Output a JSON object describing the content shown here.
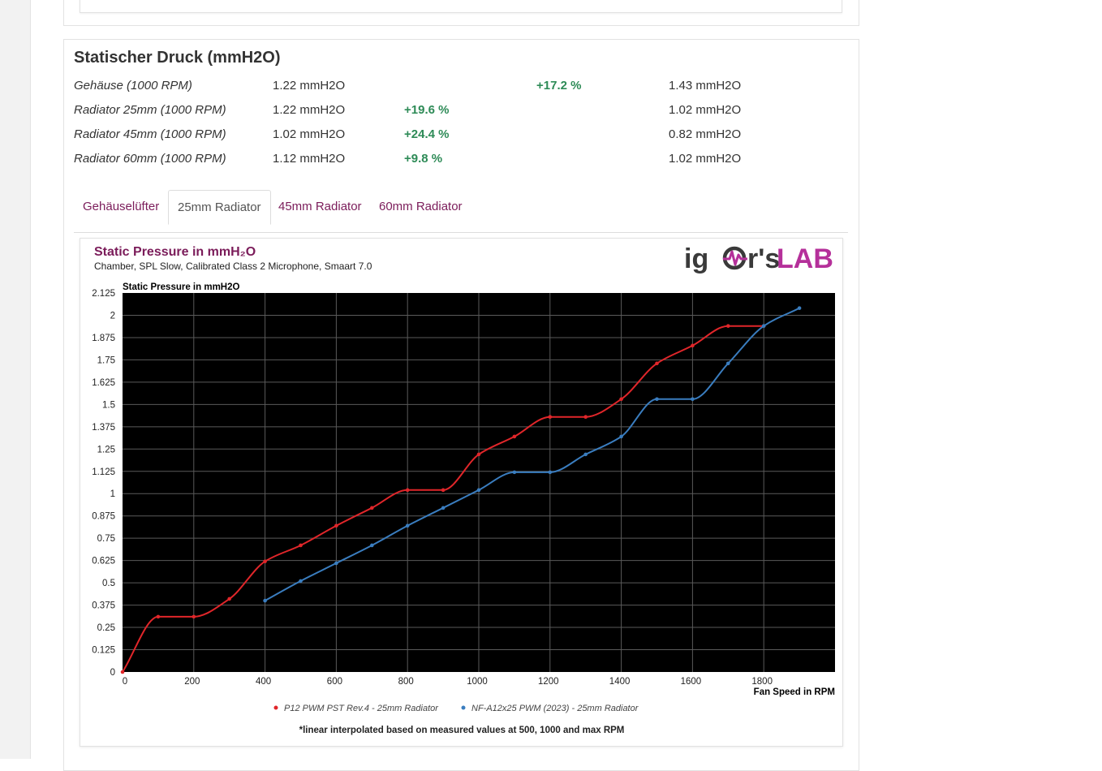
{
  "section": {
    "title": "Statischer Druck (mmH2O)",
    "rows": [
      {
        "label": "Gehäuse (1000 RPM)",
        "value_a": "1.22 mmH2O",
        "delta_a": "",
        "delta_b": "+17.2 %",
        "value_b": "1.43 mmH2O"
      },
      {
        "label": "Radiator 25mm (1000 RPM)",
        "value_a": "1.22 mmH2O",
        "delta_a": "+19.6 %",
        "delta_b": "",
        "value_b": "1.02 mmH2O"
      },
      {
        "label": "Radiator 45mm (1000 RPM)",
        "value_a": "1.02 mmH2O",
        "delta_a": "+24.4 %",
        "delta_b": "",
        "value_b": "0.82 mmH2O"
      },
      {
        "label": "Radiator 60mm (1000 RPM)",
        "value_a": "1.12 mmH2O",
        "delta_a": "+9.8 %",
        "delta_b": "",
        "value_b": "1.02 mmH2O"
      }
    ]
  },
  "tabs": [
    {
      "label": "Gehäuselüfter",
      "active": false
    },
    {
      "label": "25mm Radiator",
      "active": true
    },
    {
      "label": "45mm Radiator",
      "active": false
    },
    {
      "label": "60mm Radiator",
      "active": false
    }
  ],
  "logo": {
    "left": "ig",
    "mid": "r's",
    "right": "LAB"
  },
  "colors": {
    "accent": "#7b1c5a",
    "positive": "#2e8b57",
    "series_red": "#e0262a",
    "series_blue": "#3a7dbf",
    "plot_bg": "#000000",
    "grid": "#5a5a5a"
  },
  "chart_data": {
    "type": "line",
    "title": "Static Pressure in mmH₂O",
    "subtitle": "Chamber, SPL Slow, Calibrated Class 2 Microphone, Smaart 7.0",
    "ylabel": "Static Pressure in mmH2O",
    "xlabel": "Fan Speed in RPM",
    "footnote": "*linear interpolated based on measured values at 500, 1000 and max RPM",
    "xlim": [
      0,
      2000
    ],
    "ylim": [
      0,
      2.125
    ],
    "x_ticks": [
      0,
      200,
      400,
      600,
      800,
      1000,
      1200,
      1400,
      1600,
      1800
    ],
    "y_ticks": [
      "0",
      "0.125",
      "0.25",
      "0.375",
      "0.5",
      "0.625",
      "0.75",
      "0.875",
      "1",
      "1.125",
      "1.25",
      "1.375",
      "1.5",
      "1.625",
      "1.75",
      "1.875",
      "2",
      "2.125"
    ],
    "grid": true,
    "legend_position": "bottom",
    "series": [
      {
        "name": "P12 PWM PST Rev.4 - 25mm Radiator",
        "color": "#e0262a",
        "points": [
          [
            0,
            0
          ],
          [
            100,
            0.31
          ],
          [
            200,
            0.31
          ],
          [
            300,
            0.41
          ],
          [
            400,
            0.62
          ],
          [
            500,
            0.71
          ],
          [
            600,
            0.82
          ],
          [
            700,
            0.92
          ],
          [
            800,
            1.02
          ],
          [
            900,
            1.02
          ],
          [
            1000,
            1.22
          ],
          [
            1100,
            1.32
          ],
          [
            1200,
            1.43
          ],
          [
            1300,
            1.43
          ],
          [
            1400,
            1.53
          ],
          [
            1500,
            1.73
          ],
          [
            1600,
            1.83
          ],
          [
            1700,
            1.94
          ],
          [
            1800,
            1.94
          ]
        ]
      },
      {
        "name": "NF-A12x25 PWM (2023) - 25mm Radiator",
        "color": "#3a7dbf",
        "points": [
          [
            400,
            0.4
          ],
          [
            500,
            0.51
          ],
          [
            600,
            0.61
          ],
          [
            700,
            0.71
          ],
          [
            800,
            0.82
          ],
          [
            900,
            0.92
          ],
          [
            1000,
            1.02
          ],
          [
            1100,
            1.12
          ],
          [
            1200,
            1.12
          ],
          [
            1300,
            1.22
          ],
          [
            1400,
            1.32
          ],
          [
            1500,
            1.53
          ],
          [
            1600,
            1.53
          ],
          [
            1700,
            1.73
          ],
          [
            1800,
            1.94
          ],
          [
            1900,
            2.04
          ]
        ]
      }
    ]
  }
}
